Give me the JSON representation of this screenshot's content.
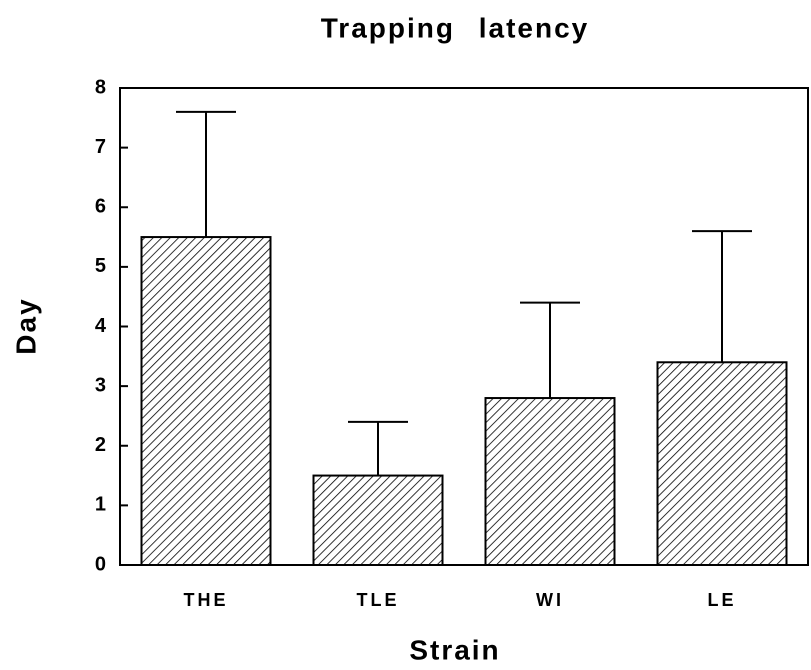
{
  "chart_data": {
    "type": "bar",
    "title": "Trapping latency",
    "x_label": "Strain",
    "y_label": "Day",
    "categories": [
      "THE",
      "TLE",
      "WI",
      "LE"
    ],
    "values": [
      5.5,
      1.5,
      2.8,
      3.4
    ],
    "errors": [
      2.1,
      0.9,
      1.6,
      2.2
    ],
    "color": "#000000",
    "ylim": [
      0,
      8
    ],
    "yticks": [
      0,
      1,
      2,
      3,
      4,
      5,
      6,
      7,
      8
    ],
    "grid": false
  }
}
